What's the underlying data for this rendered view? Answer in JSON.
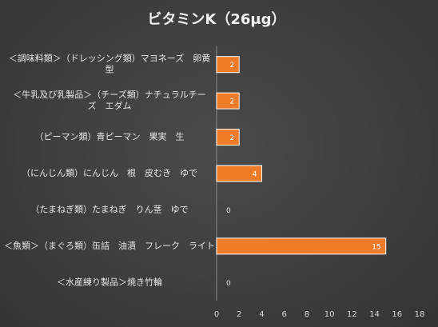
{
  "chart_data": {
    "type": "bar",
    "orientation": "horizontal",
    "title": "ビタミンK（26μg）",
    "title_main": "ビタミンK",
    "title_paren": "（26μg）",
    "categories": [
      [
        "＜調味料類＞（ドレッシング類）マヨネーズ　卵黄",
        "型"
      ],
      [
        "＜牛乳及び乳製品＞（チーズ類）ナチュラルチー",
        "ズ　エダム"
      ],
      [
        "（ピーマン類）青ピーマン　果実　生"
      ],
      [
        "（にんじん類）にんじん　根　皮むき　ゆで"
      ],
      [
        "（たまねぎ類）たまねぎ　りん茎　ゆで"
      ],
      [
        "＜魚類＞（まぐろ類）缶詰　油漬　フレーク　ライト"
      ],
      [
        "＜水産練り製品＞焼き竹輪"
      ]
    ],
    "values": [
      2,
      2,
      2,
      4,
      0,
      15,
      0
    ],
    "data_labels": [
      "2",
      "2",
      "2",
      "4",
      "0",
      "15",
      "0"
    ],
    "xticks": [
      "0",
      "2",
      "4",
      "6",
      "8",
      "10",
      "12",
      "14",
      "16",
      "18"
    ],
    "xlim": [
      0,
      18
    ],
    "xlabel": "",
    "ylabel": "",
    "grid": false,
    "legend": "none",
    "colors": {
      "bar_fill": "#f07c2a",
      "bar_stroke": "#ffffff",
      "axis_line": "#8a8a8a",
      "text": "#e8e8e8",
      "background": "#404040"
    }
  }
}
